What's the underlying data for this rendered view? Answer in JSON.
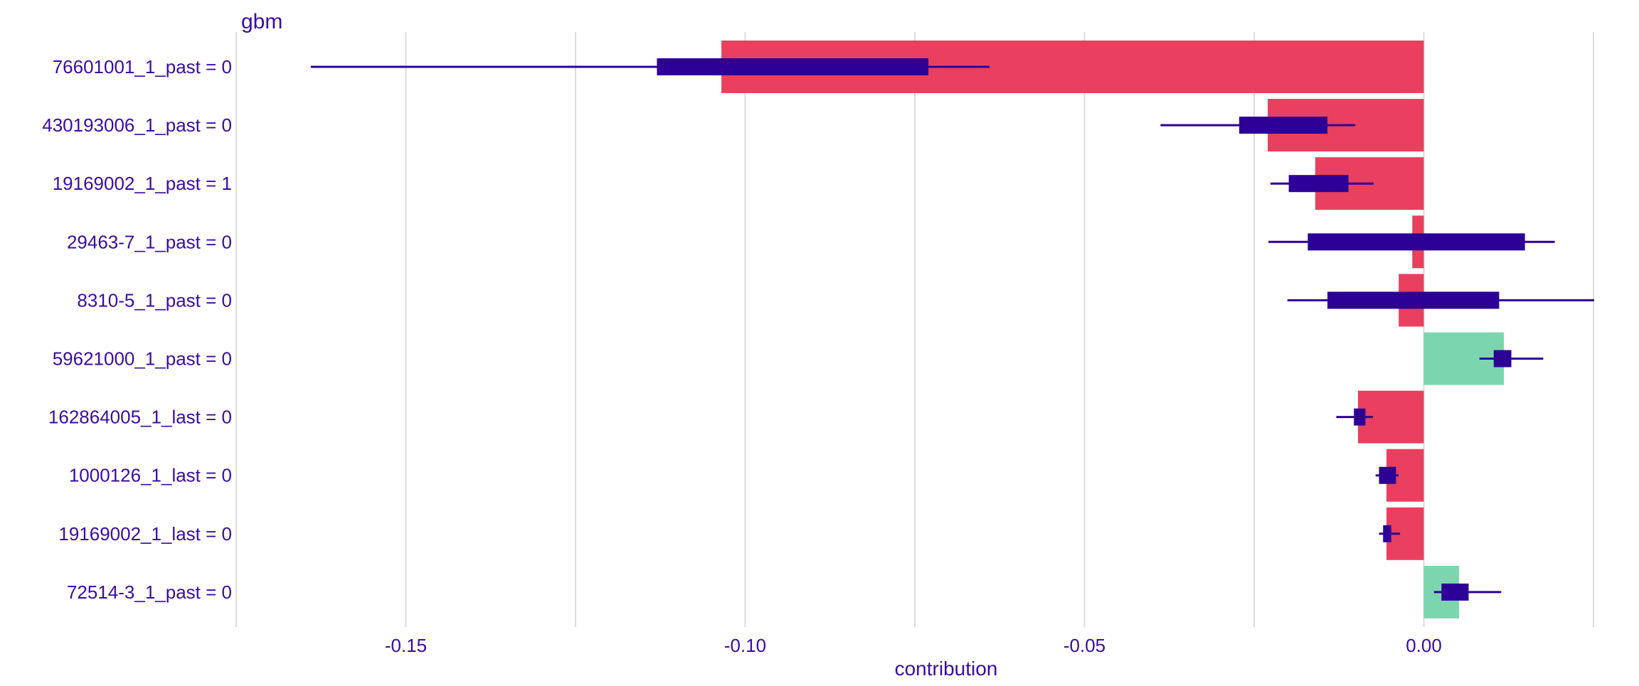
{
  "chart_data": {
    "type": "bar",
    "title": "gbm",
    "xlabel": "contribution",
    "ylabel": "",
    "xlim": [
      -0.175,
      0.025
    ],
    "xticks": [
      -0.15,
      -0.1,
      -0.05,
      0.0
    ],
    "xtick_labels": [
      "-0.15",
      "-0.10",
      "-0.05",
      "0.00"
    ],
    "grid": true,
    "colors": {
      "negative": "#e9405f",
      "positive": "#7bd6af",
      "box": "#2d0096",
      "text": "#3a0ca3",
      "grid": "#dcdcdc"
    },
    "categories": [
      "76601001_1_past = 0",
      "430193006_1_past = 0",
      "19169002_1_past = 1",
      "29463-7_1_past = 0",
      "8310-5_1_past = 0",
      "59621000_1_past = 0",
      "162864005_1_last = 0",
      "1000126_1_last = 0",
      "19169002_1_last = 0",
      "72514-3_1_past = 0"
    ],
    "values": [
      -0.1035,
      -0.023,
      -0.016,
      -0.0017,
      -0.0037,
      0.0118,
      -0.0097,
      -0.0055,
      -0.0055,
      0.0052
    ],
    "boxes": [
      {
        "min": -0.164,
        "q1": -0.113,
        "q3": -0.073,
        "max": -0.064
      },
      {
        "min": -0.0388,
        "q1": -0.0272,
        "q3": -0.0142,
        "max": -0.0101
      },
      {
        "min": -0.0226,
        "q1": -0.0199,
        "q3": -0.0111,
        "max": -0.0074
      },
      {
        "min": -0.0229,
        "q1": -0.0171,
        "q3": 0.0149,
        "max": 0.0193
      },
      {
        "min": -0.0201,
        "q1": -0.0142,
        "q3": 0.0111,
        "max": 0.0251
      },
      {
        "min": 0.0082,
        "q1": 0.0103,
        "q3": 0.0129,
        "max": 0.0176
      },
      {
        "min": -0.0129,
        "q1": -0.0103,
        "q3": -0.0086,
        "max": -0.0075
      },
      {
        "min": -0.0071,
        "q1": -0.0066,
        "q3": -0.0041,
        "max": -0.0037
      },
      {
        "min": -0.0066,
        "q1": -0.006,
        "q3": -0.0048,
        "max": -0.0035
      },
      {
        "min": 0.0015,
        "q1": 0.0026,
        "q3": 0.0066,
        "max": 0.0114
      }
    ]
  }
}
